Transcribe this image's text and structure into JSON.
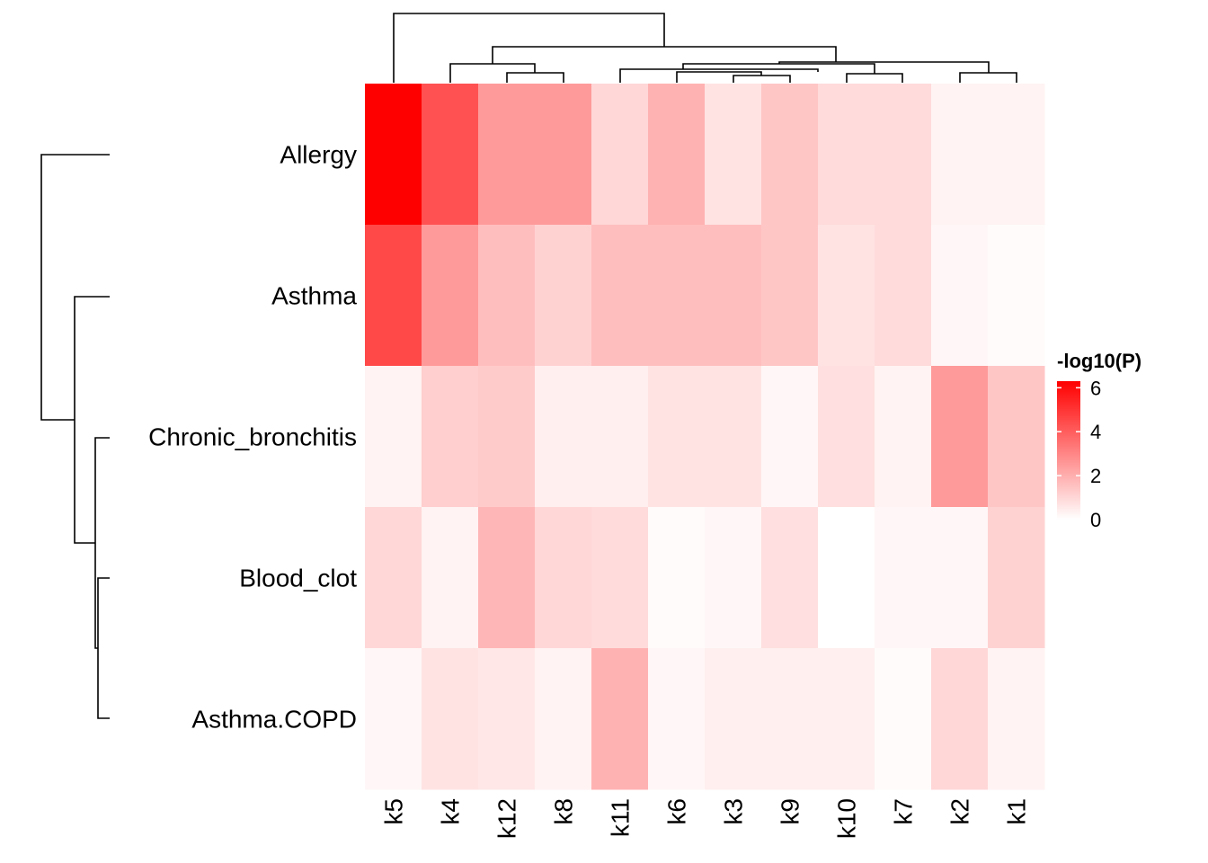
{
  "chart_data": {
    "type": "heatmap",
    "rows": [
      "Allergy",
      "Asthma",
      "Chronic_bronchitis",
      "Blood_clot",
      "Asthma.COPD"
    ],
    "columns": [
      "k5",
      "k4",
      "k12",
      "k8",
      "k11",
      "k6",
      "k3",
      "k9",
      "k10",
      "k7",
      "k2",
      "k1"
    ],
    "values": [
      [
        6.3,
        4.3,
        2.5,
        2.5,
        1.0,
        1.9,
        0.7,
        1.4,
        0.9,
        0.9,
        0.3,
        0.3
      ],
      [
        4.5,
        2.5,
        1.6,
        1.1,
        1.6,
        1.6,
        1.6,
        1.4,
        0.7,
        0.9,
        0.2,
        0.1
      ],
      [
        0.3,
        1.2,
        1.3,
        0.4,
        0.4,
        0.7,
        0.7,
        0.2,
        0.8,
        0.3,
        2.5,
        1.4
      ],
      [
        1.0,
        0.3,
        1.8,
        1.0,
        0.9,
        0.1,
        0.2,
        0.8,
        0.0,
        0.2,
        0.2,
        1.1
      ],
      [
        0.2,
        0.7,
        0.6,
        0.3,
        1.9,
        0.2,
        0.4,
        0.4,
        0.4,
        0.1,
        1.0,
        0.3
      ]
    ],
    "colorbar": {
      "title": "-log10(P)",
      "min": 0,
      "max": 6.3,
      "ticks": [
        "6",
        "4",
        "2",
        "0"
      ],
      "tick_values": [
        6,
        4,
        2,
        0
      ],
      "low_color": "#ffffff",
      "high_color": "#ff0000"
    },
    "row_dendrogram": "Allergy vs (Asthma vs (Chronic_bronchitis vs (Blood_clot, Asthma.COPD)))",
    "column_dendrogram": "(k5) vs ((k4, (k12, k8)) vs ((k11, (k6, (k3, k9))), (k10, k7)), (k2, k1)))",
    "legend_position": "right"
  }
}
